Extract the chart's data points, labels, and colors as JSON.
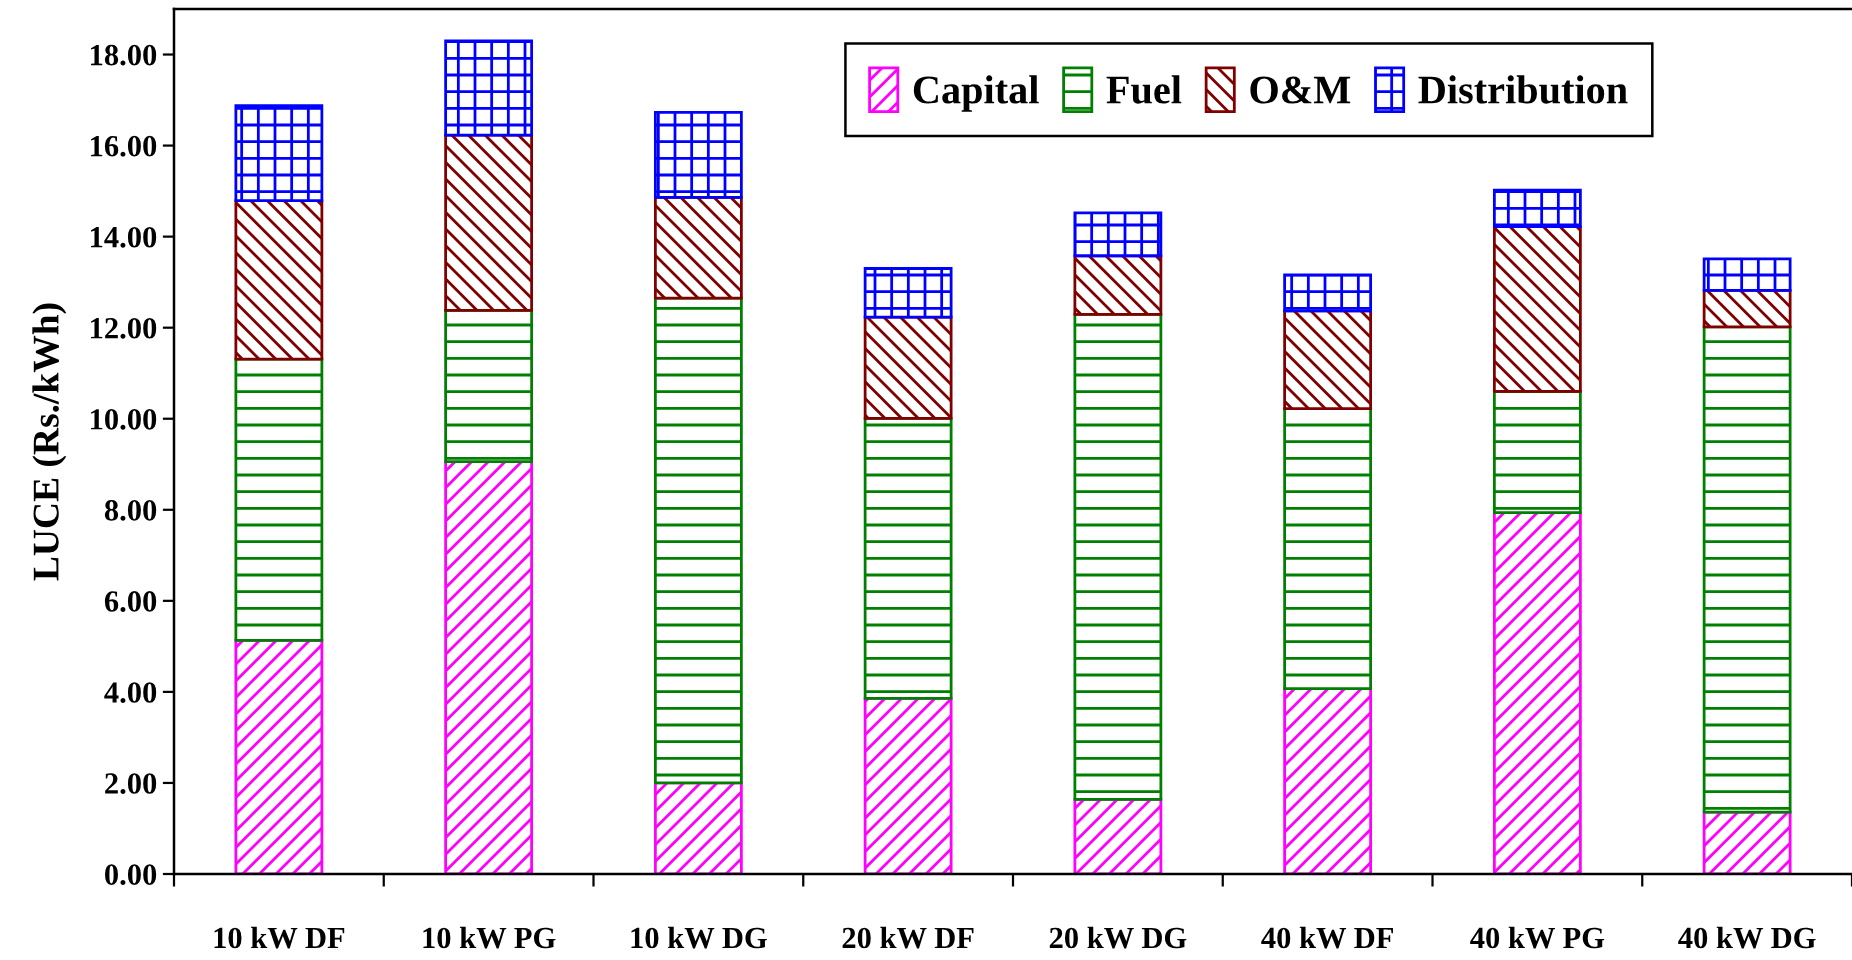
{
  "chart_data": {
    "type": "bar",
    "stacked": true,
    "categories": [
      "10 kW DF",
      "10 kW PG",
      "10 kW DG",
      "20 kW DF",
      "20 kW DG",
      "40 kW DF",
      "40 kW PG",
      "40 kW DG"
    ],
    "series": [
      {
        "name": "Capital",
        "color": "#ff00ff",
        "values": [
          5.13,
          9.06,
          2.0,
          3.86,
          1.64,
          4.07,
          7.94,
          1.36
        ]
      },
      {
        "name": "Fuel",
        "color": "#008000",
        "values": [
          6.18,
          3.32,
          10.65,
          6.15,
          10.65,
          6.15,
          2.66,
          10.66
        ]
      },
      {
        "name": "O&M",
        "color": "#800000",
        "values": [
          3.48,
          3.85,
          2.21,
          2.22,
          1.29,
          2.15,
          3.62,
          0.8
        ]
      },
      {
        "name": "Distribution",
        "color": "#0000ff",
        "values": [
          2.09,
          2.07,
          1.87,
          1.07,
          0.94,
          0.79,
          0.8,
          0.69
        ]
      }
    ],
    "ylabel": "LUCE (Rs./kWh)",
    "ylim": [
      0,
      19
    ],
    "yticks": [
      {
        "value": 0,
        "label": "0.00"
      },
      {
        "value": 2,
        "label": "2.00"
      },
      {
        "value": 4,
        "label": "4.00"
      },
      {
        "value": 6,
        "label": "6.00"
      },
      {
        "value": 8,
        "label": "8.00"
      },
      {
        "value": 10,
        "label": "10.00"
      },
      {
        "value": 12,
        "label": "12.00"
      },
      {
        "value": 14,
        "label": "14.00"
      },
      {
        "value": 16,
        "label": "16.00"
      },
      {
        "value": 18,
        "label": "18.00"
      }
    ],
    "legend": "top right"
  }
}
